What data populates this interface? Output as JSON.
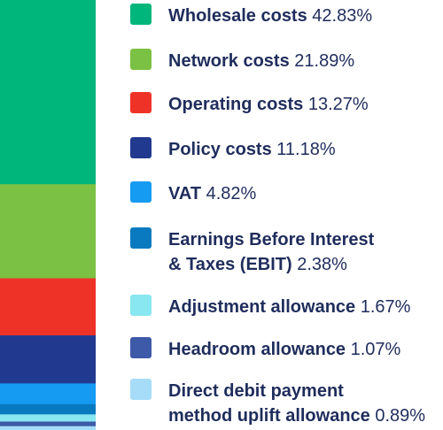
{
  "chart_data": {
    "type": "bar",
    "stacked": true,
    "categories": [
      ""
    ],
    "series": [
      {
        "name": "Wholesale costs",
        "values": [
          42.83
        ],
        "display": "42.83%",
        "color": "#00b67a"
      },
      {
        "name": "Network costs",
        "values": [
          21.89
        ],
        "display": "21.89%",
        "color": "#7bc143"
      },
      {
        "name": "Operating costs",
        "values": [
          13.27
        ],
        "display": "13.27%",
        "color": "#ef3228"
      },
      {
        "name": "Policy costs",
        "values": [
          11.18
        ],
        "display": "11.18%",
        "color": "#213a8f"
      },
      {
        "name": "VAT",
        "values": [
          4.82
        ],
        "display": "4.82%",
        "color": "#159bf2"
      },
      {
        "name": "Earnings Before Interest & Taxes (EBIT)",
        "name_lines": [
          "Earnings Before Interest",
          "& Taxes (EBIT)"
        ],
        "values": [
          2.38
        ],
        "display": "2.38%",
        "color": "#0a7ac0"
      },
      {
        "name": "Adjustment allowance",
        "values": [
          1.67
        ],
        "display": "1.67%",
        "color": "#88e7f0"
      },
      {
        "name": "Headroom allowance",
        "values": [
          1.07
        ],
        "display": "1.07%",
        "color": "#3d5aa8"
      },
      {
        "name": "Direct debit payment method uplift allowance",
        "name_lines": [
          "Direct debit payment",
          "method uplift allowance"
        ],
        "values": [
          0.89
        ],
        "display": "0.89%",
        "color": "#a6dcf8"
      }
    ],
    "legend_position": "right",
    "grid": false
  }
}
